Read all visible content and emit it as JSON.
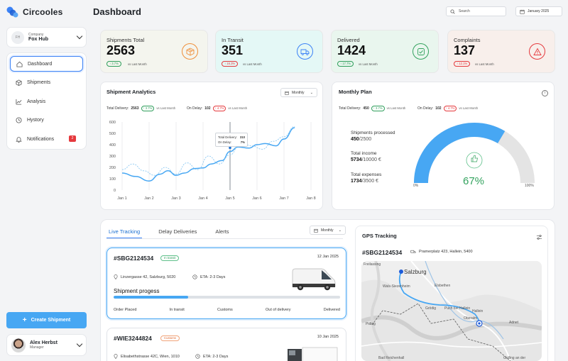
{
  "brand": {
    "name": "Circooles"
  },
  "company": {
    "label": "Company",
    "name": "Fox Hub",
    "initials": "FH"
  },
  "nav": [
    {
      "label": "Dashboard",
      "icon": "home-icon",
      "active": true
    },
    {
      "label": "Shipments",
      "icon": "box-icon"
    },
    {
      "label": "Analysis",
      "icon": "chart-icon"
    },
    {
      "label": "Hystory",
      "icon": "clock-icon"
    },
    {
      "label": "Notifications",
      "icon": "bell-icon",
      "badge": "2"
    }
  ],
  "create_button": "Create Shipment",
  "user": {
    "name": "Alex Herbst",
    "role": "Manager"
  },
  "header": {
    "title": "Dashboard",
    "search_placeholder": "Search",
    "date": "January 2025"
  },
  "stats": [
    {
      "label": "Shipments Total",
      "value": "2563",
      "change": "↑ 3.7%",
      "note": "vs Last Month",
      "bg": "#f4f5ee",
      "accent": "#ef8f3a",
      "change_color": "#2e9e5b"
    },
    {
      "label": "In Transit",
      "value": "351",
      "change": "↑ 16.3%",
      "note": "vs Last Month",
      "bg": "#e4f8f6",
      "accent": "#3b82f6",
      "change_color": "#e5393d"
    },
    {
      "label": "Delivered",
      "value": "1424",
      "change": "↑ 17.7%",
      "note": "vs Last Month",
      "bg": "#e9f6ee",
      "accent": "#34a35f",
      "change_color": "#2e9e5b"
    },
    {
      "label": "Complaints",
      "value": "137",
      "change": "↑ 12.1%",
      "note": "vs Last Month",
      "bg": "#f8efeb",
      "accent": "#e5393d",
      "change_color": "#e5393d"
    }
  ],
  "analytics": {
    "title": "Shipment Analytics",
    "period": "Monthly",
    "total_label": "Total Delivery:",
    "total_value": "2563",
    "total_change": "↑ 3.7%",
    "delay_label": "On Delay:",
    "delay_value": "102",
    "delay_change": "↑ 4.7%",
    "note": "vs Last Month",
    "tooltip": {
      "total_label": "Total Delivery:",
      "total": "310",
      "delay_label": "On Delay:",
      "delay": "7%"
    }
  },
  "chart_data": {
    "type": "line",
    "x": [
      "Jan 1",
      "Jan 2",
      "Jan 3",
      "Jan 4",
      "Jan 5",
      "Jan 6",
      "Jan 7",
      "Jan 8"
    ],
    "yticks": [
      0,
      100,
      200,
      300,
      400,
      500,
      600
    ],
    "ylim": [
      0,
      600
    ],
    "series": [
      {
        "style": "solid",
        "x": [
          1,
          1.5,
          2,
          2.4,
          2.7,
          3,
          3.3,
          3.7,
          4,
          4.3,
          4.7,
          5,
          5.3,
          5.7,
          6,
          6.3,
          6.7,
          7,
          7.4
        ],
        "values": [
          150,
          120,
          80,
          140,
          170,
          130,
          150,
          190,
          195,
          230,
          260,
          340,
          380,
          370,
          400,
          410,
          390,
          450,
          550
        ]
      },
      {
        "style": "dashed",
        "x": [
          1,
          1.4,
          1.8,
          2.2,
          2.6,
          3,
          3.4,
          3.8,
          4.2,
          4.6,
          5,
          5.4,
          5.8,
          6.2,
          6.6,
          7,
          7.4
        ],
        "values": [
          180,
          230,
          170,
          130,
          200,
          140,
          240,
          180,
          300,
          230,
          310,
          420,
          390,
          360,
          430,
          470,
          560
        ]
      }
    ],
    "grid": "vertical"
  },
  "plan": {
    "title": "Monthly Plan",
    "total_label": "Total Delivery:",
    "total_value": "450",
    "total_change": "↑ 3.7%",
    "delay_label": "On Delay:",
    "delay_value": "102",
    "delay_change": "↑ 4.7%",
    "note": "vs Last Month",
    "processed_label": "Shipments processed",
    "processed_value": "450",
    "processed_target": "/2500",
    "income_label": "Total income",
    "income_value": "5734",
    "income_target": "/10000 €",
    "expenses_label": "Total expenses",
    "expenses_value": "1734",
    "expenses_target": "/3500 €",
    "gauge_percent": "67%",
    "gauge_fraction": 0.67,
    "gauge_min": "0%",
    "gauge_max": "100%"
  },
  "tracking": {
    "tabs": [
      "Live Tracking",
      "Delay Deliveries",
      "Alerts"
    ],
    "period": "Monthly",
    "shipments": [
      {
        "id": "#SBG2124534",
        "status": "In transit",
        "date": "12 Jan 2025",
        "address": "Linzergasse 42, Salzburg, 5020",
        "eta": "ETA: 2-3 Days",
        "progress_title": "Shipment progess",
        "progress": 0.33,
        "steps": [
          "Order Placed",
          "In transit",
          "Customs",
          "Out of delivery",
          "Delivered"
        ]
      },
      {
        "id": "#WIE3244824",
        "status": "Customs",
        "date": "10 Jan 2025",
        "address": "Elisabethstrasse 42C, Wien, 1010",
        "eta": "ETA: 2-3 Days"
      }
    ]
  },
  "gps": {
    "title": "GPS Tracking",
    "shipment_id": "#SBG2124534",
    "location": "Pramerplatz 423, Hallein, 5400",
    "towns": [
      "Freilassing",
      "Salzburg",
      "Wals-Siezenheim",
      "Elsbethen",
      "Grödig",
      "Puch bei Hallein",
      "Hallein",
      "Oberalm",
      "Piding",
      "Adnet",
      "Bad Reichenhall",
      "Golling an der"
    ]
  }
}
